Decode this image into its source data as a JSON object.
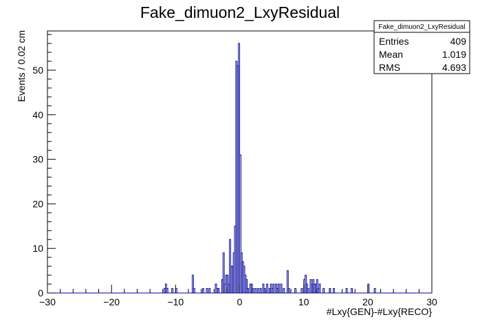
{
  "chart_data": {
    "type": "histogram",
    "title": "Fake_dimuon2_LxyResidual",
    "xlabel": "#Lxy{GEN}-#Lxy{RECO}",
    "ylabel": "Events / 0.02 cm",
    "xlim": [
      -30,
      30
    ],
    "ylim": [
      0,
      58.8
    ],
    "x_ticks": [
      -30,
      -20,
      -10,
      0,
      10,
      20,
      30
    ],
    "x_tick_labels": [
      "−30",
      "−20",
      "−10",
      "0",
      "10",
      "20",
      "30"
    ],
    "y_ticks": [
      0,
      10,
      20,
      30,
      40,
      50
    ],
    "y_tick_labels": [
      "0",
      "10",
      "20",
      "30",
      "40",
      "50"
    ],
    "line_color": "#000099",
    "grid": false,
    "stats": {
      "title": "Fake_dimuon2_LxyResidual",
      "rows": [
        {
          "label": "Entries",
          "value": "409"
        },
        {
          "label": "Mean",
          "value": "1.019"
        },
        {
          "label": "RMS",
          "value": "4.693"
        }
      ],
      "placement": "top-right"
    },
    "bins": [
      {
        "x": -11.8,
        "y": 1
      },
      {
        "x": -11.6,
        "y": 2
      },
      {
        "x": -11.4,
        "y": 1
      },
      {
        "x": -10.6,
        "y": 1
      },
      {
        "x": -10.0,
        "y": 1
      },
      {
        "x": -7.4,
        "y": 4
      },
      {
        "x": -7.2,
        "y": 1
      },
      {
        "x": -5.8,
        "y": 1
      },
      {
        "x": -5.2,
        "y": 1
      },
      {
        "x": -4.8,
        "y": 1
      },
      {
        "x": -3.8,
        "y": 2
      },
      {
        "x": -3.6,
        "y": 1
      },
      {
        "x": -3.4,
        "y": 1
      },
      {
        "x": -2.8,
        "y": 3
      },
      {
        "x": -2.6,
        "y": 9
      },
      {
        "x": -2.4,
        "y": 2
      },
      {
        "x": -2.2,
        "y": 4
      },
      {
        "x": -2.0,
        "y": 4
      },
      {
        "x": -1.8,
        "y": 2
      },
      {
        "x": -1.6,
        "y": 12
      },
      {
        "x": -1.4,
        "y": 6
      },
      {
        "x": -1.2,
        "y": 6
      },
      {
        "x": -1.0,
        "y": 9
      },
      {
        "x": -0.8,
        "y": 15
      },
      {
        "x": -0.6,
        "y": 52
      },
      {
        "x": -0.4,
        "y": 51
      },
      {
        "x": -0.2,
        "y": 56
      },
      {
        "x": 0.0,
        "y": 31
      },
      {
        "x": 0.2,
        "y": 9
      },
      {
        "x": 0.4,
        "y": 7
      },
      {
        "x": 0.6,
        "y": 6
      },
      {
        "x": 0.8,
        "y": 4
      },
      {
        "x": 1.0,
        "y": 3
      },
      {
        "x": 1.2,
        "y": 1
      },
      {
        "x": 1.6,
        "y": 2
      },
      {
        "x": 1.8,
        "y": 2
      },
      {
        "x": 2.0,
        "y": 1
      },
      {
        "x": 2.4,
        "y": 1
      },
      {
        "x": 2.8,
        "y": 1
      },
      {
        "x": 3.2,
        "y": 1
      },
      {
        "x": 3.6,
        "y": 2
      },
      {
        "x": 3.8,
        "y": 1
      },
      {
        "x": 4.2,
        "y": 2
      },
      {
        "x": 4.6,
        "y": 1
      },
      {
        "x": 4.8,
        "y": 2
      },
      {
        "x": 5.0,
        "y": 1
      },
      {
        "x": 5.2,
        "y": 2
      },
      {
        "x": 5.6,
        "y": 2
      },
      {
        "x": 5.8,
        "y": 1
      },
      {
        "x": 6.0,
        "y": 2
      },
      {
        "x": 6.4,
        "y": 2
      },
      {
        "x": 6.8,
        "y": 1
      },
      {
        "x": 7.4,
        "y": 5
      },
      {
        "x": 7.6,
        "y": 1
      },
      {
        "x": 8.6,
        "y": 1
      },
      {
        "x": 9.6,
        "y": 1
      },
      {
        "x": 10.0,
        "y": 3
      },
      {
        "x": 10.2,
        "y": 4
      },
      {
        "x": 10.4,
        "y": 2
      },
      {
        "x": 10.6,
        "y": 1
      },
      {
        "x": 11.0,
        "y": 3
      },
      {
        "x": 11.2,
        "y": 2
      },
      {
        "x": 11.4,
        "y": 3
      },
      {
        "x": 11.6,
        "y": 2
      },
      {
        "x": 11.8,
        "y": 2
      },
      {
        "x": 12.0,
        "y": 3
      },
      {
        "x": 12.2,
        "y": 1
      },
      {
        "x": 12.4,
        "y": 2
      },
      {
        "x": 13.0,
        "y": 1
      },
      {
        "x": 14.0,
        "y": 1
      },
      {
        "x": 14.6,
        "y": 1
      },
      {
        "x": 16.6,
        "y": 1
      },
      {
        "x": 17.4,
        "y": 1
      },
      {
        "x": 20.0,
        "y": 2
      },
      {
        "x": 21.0,
        "y": 1
      }
    ],
    "bin_width": 0.2
  }
}
